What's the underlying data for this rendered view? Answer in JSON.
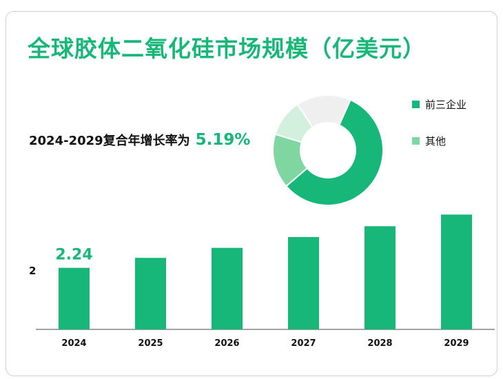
{
  "title": "全球胶体二氧化硅市场规模（亿美元）",
  "cagr": {
    "label": "2024-2029复合年增长率为",
    "value": "5.19%"
  },
  "colors": {
    "accent": "#17b77a",
    "light": "#7fd6a1",
    "pale": "#d3f0de",
    "grey": "#efefef"
  },
  "chart_data": [
    {
      "type": "pie",
      "donut": true,
      "slices": [
        {
          "name": "前三企业",
          "value": 57,
          "color": "#17b77a"
        },
        {
          "name": "其他",
          "value": 16,
          "color": "#7fd6a1"
        },
        {
          "name": "",
          "value": 11,
          "color": "#d3f0de"
        },
        {
          "name": "",
          "value": 16,
          "color": "#efefef"
        }
      ],
      "legend": [
        "前三企业",
        "其他"
      ],
      "legend_position": "right"
    },
    {
      "type": "bar",
      "categories": [
        "2024",
        "2025",
        "2026",
        "2027",
        "2028",
        "2029"
      ],
      "values": [
        2.24,
        2.36,
        2.48,
        2.61,
        2.74,
        2.88
      ],
      "data_labels": [
        "2.24",
        "",
        "",
        "",
        "",
        ""
      ],
      "ytick_label": "2",
      "ylim": [
        1.5,
        2.85
      ],
      "color": "#17b77a",
      "grid": false
    }
  ]
}
